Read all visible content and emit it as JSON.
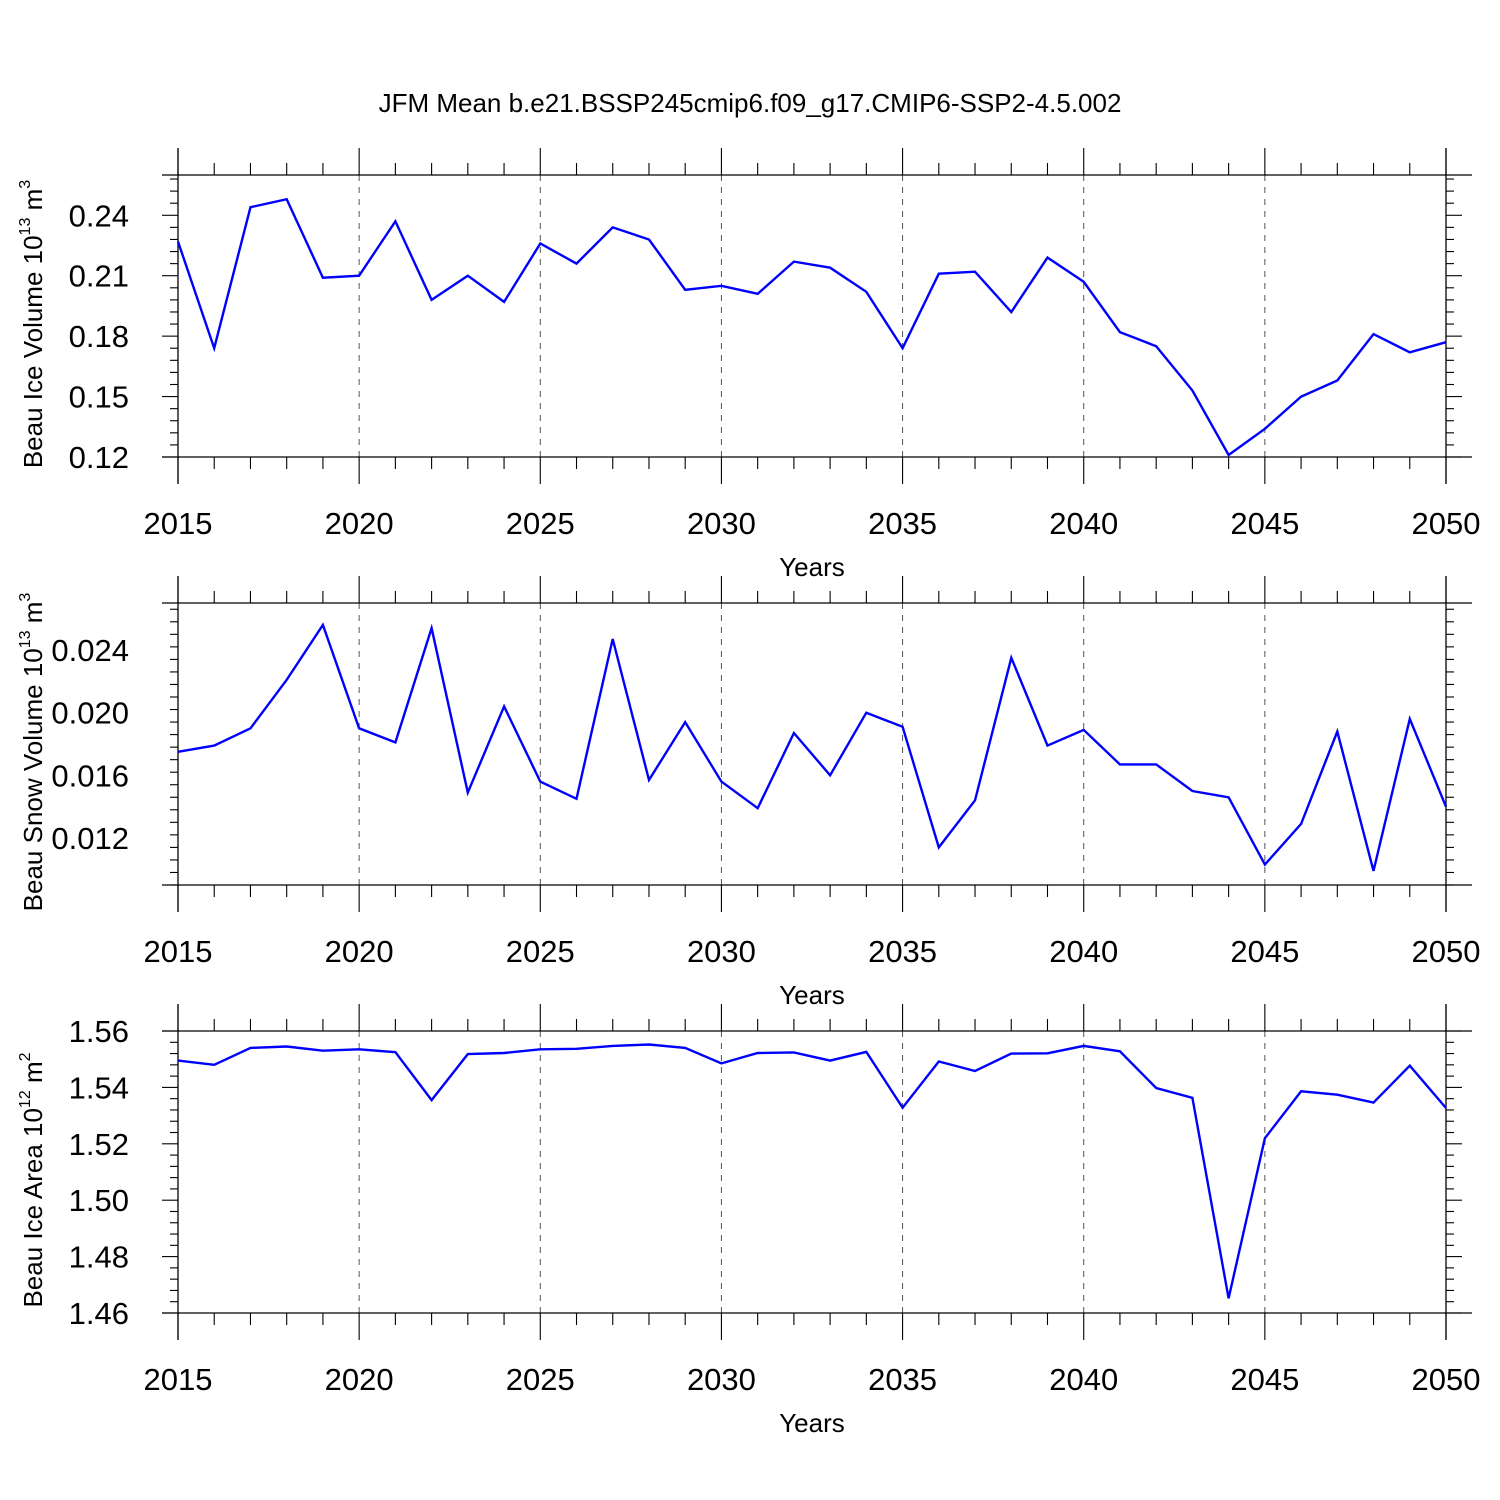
{
  "title": "JFM Mean b.e21.BSSP245cmip6.f09_g17.CMIP6-SSP2-4.5.002",
  "line_color": "#0000ff",
  "chart_data": [
    {
      "type": "line",
      "xlabel": "Years",
      "ylabel": {
        "text": "Beau Ice Volume 10",
        "exp": "13",
        "unit": " m",
        "unit_exp": "3"
      },
      "xlim": [
        2015,
        2050
      ],
      "ylim": [
        0.12,
        0.26
      ],
      "xticks": [
        2015,
        2020,
        2025,
        2030,
        2035,
        2040,
        2045,
        2050
      ],
      "xtick_labels": [
        "2015",
        "2020",
        "2025",
        "2030",
        "2035",
        "2040",
        "2045",
        "2050"
      ],
      "yticks": [
        0.12,
        0.15,
        0.18,
        0.21,
        0.24
      ],
      "ytick_labels": [
        "0.12",
        "0.15",
        "0.18",
        "0.21",
        "0.24"
      ],
      "grid": "vertical dashed",
      "x": [
        2015,
        2016,
        2017,
        2018,
        2019,
        2020,
        2021,
        2022,
        2023,
        2024,
        2025,
        2026,
        2027,
        2028,
        2029,
        2030,
        2031,
        2032,
        2033,
        2034,
        2035,
        2036,
        2037,
        2038,
        2039,
        2040,
        2041,
        2042,
        2043,
        2044,
        2045,
        2046,
        2047,
        2048,
        2049,
        2050
      ],
      "y": [
        0.227,
        0.174,
        0.244,
        0.248,
        0.209,
        0.21,
        0.237,
        0.198,
        0.21,
        0.197,
        0.226,
        0.216,
        0.234,
        0.228,
        0.203,
        0.205,
        0.201,
        0.217,
        0.214,
        0.202,
        0.174,
        0.211,
        0.212,
        0.192,
        0.219,
        0.207,
        0.182,
        0.175,
        0.153,
        0.121,
        0.134,
        0.15,
        0.158,
        0.181,
        0.172,
        0.177
      ]
    },
    {
      "type": "line",
      "xlabel": "Years",
      "ylabel": {
        "text": "Beau Snow Volume 10",
        "exp": "13",
        "unit": " m",
        "unit_exp": "3"
      },
      "xlim": [
        2015,
        2050
      ],
      "ylim": [
        0.009,
        0.027
      ],
      "xticks": [
        2015,
        2020,
        2025,
        2030,
        2035,
        2040,
        2045,
        2050
      ],
      "xtick_labels": [
        "2015",
        "2020",
        "2025",
        "2030",
        "2035",
        "2040",
        "2045",
        "2050"
      ],
      "yticks": [
        0.012,
        0.016,
        0.02,
        0.024
      ],
      "ytick_labels": [
        "0.012",
        "0.016",
        "0.020",
        "0.024"
      ],
      "grid": "vertical dashed",
      "x": [
        2015,
        2016,
        2017,
        2018,
        2019,
        2020,
        2021,
        2022,
        2023,
        2024,
        2025,
        2026,
        2027,
        2028,
        2029,
        2030,
        2031,
        2032,
        2033,
        2034,
        2035,
        2036,
        2037,
        2038,
        2039,
        2040,
        2041,
        2042,
        2043,
        2044,
        2045,
        2046,
        2047,
        2048,
        2049,
        2050
      ],
      "y": [
        0.0175,
        0.0179,
        0.019,
        0.0221,
        0.0256,
        0.019,
        0.0181,
        0.0254,
        0.0149,
        0.0204,
        0.0156,
        0.0145,
        0.0247,
        0.0157,
        0.0194,
        0.0156,
        0.0139,
        0.0187,
        0.016,
        0.02,
        0.0191,
        0.0114,
        0.0144,
        0.0235,
        0.0179,
        0.0189,
        0.0167,
        0.0167,
        0.015,
        0.0146,
        0.0103,
        0.0129,
        0.0188,
        0.0099,
        0.0196,
        0.014
      ]
    },
    {
      "type": "line",
      "xlabel": "Years",
      "ylabel": {
        "text": "Beau Ice Area 10",
        "exp": "12",
        "unit": " m",
        "unit_exp": "2"
      },
      "xlim": [
        2015,
        2050
      ],
      "ylim": [
        1.46,
        1.56
      ],
      "xticks": [
        2015,
        2020,
        2025,
        2030,
        2035,
        2040,
        2045,
        2050
      ],
      "xtick_labels": [
        "2015",
        "2020",
        "2025",
        "2030",
        "2035",
        "2040",
        "2045",
        "2050"
      ],
      "yticks": [
        1.46,
        1.48,
        1.5,
        1.52,
        1.54,
        1.56
      ],
      "ytick_labels": [
        "1.46",
        "1.48",
        "1.50",
        "1.52",
        "1.54",
        "1.56"
      ],
      "grid": "vertical dashed",
      "x": [
        2015,
        2016,
        2017,
        2018,
        2019,
        2020,
        2021,
        2022,
        2023,
        2024,
        2025,
        2026,
        2027,
        2028,
        2029,
        2030,
        2031,
        2032,
        2033,
        2034,
        2035,
        2036,
        2037,
        2038,
        2039,
        2040,
        2041,
        2042,
        2043,
        2044,
        2045,
        2046,
        2047,
        2048,
        2049,
        2050
      ],
      "y": [
        1.5495,
        1.548,
        1.554,
        1.5545,
        1.553,
        1.5535,
        1.5525,
        1.5355,
        1.5518,
        1.5522,
        1.5535,
        1.5537,
        1.5547,
        1.5552,
        1.554,
        1.5485,
        1.5522,
        1.5524,
        1.5495,
        1.5526,
        1.5328,
        1.5492,
        1.5458,
        1.552,
        1.5521,
        1.5547,
        1.5528,
        1.5398,
        1.5363,
        1.4652,
        1.522,
        1.5386,
        1.5374,
        1.5346,
        1.5477,
        1.5327
      ]
    }
  ]
}
